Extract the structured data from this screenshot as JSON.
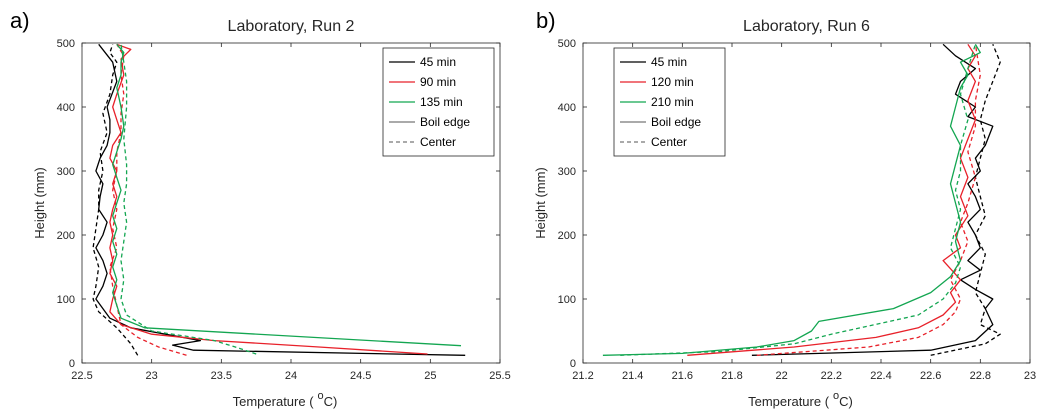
{
  "chart_data": [
    {
      "type": "line",
      "panel_label": "a)",
      "title": "Laboratory, Run 2",
      "xlabel": "Temperature (",
      "xlabel_sup": "o",
      "xlabel_unit": "C)",
      "ylabel": "Height (mm)",
      "xlim": [
        22.5,
        25.5
      ],
      "ylim": [
        0,
        500
      ],
      "xticks": [
        22.5,
        23,
        23.5,
        24,
        24.5,
        25,
        25.5
      ],
      "xtick_labels": [
        "22.5",
        "23",
        "23.5",
        "24",
        "24.5",
        "25",
        "25.5"
      ],
      "yticks": [
        0,
        100,
        200,
        300,
        400,
        500
      ],
      "ytick_labels": [
        "0",
        "100",
        "200",
        "300",
        "400",
        "500"
      ],
      "legend": {
        "placement": "top-right",
        "entries": [
          {
            "label": "45 min",
            "color": "#000000",
            "dash": "solid"
          },
          {
            "label": "90 min",
            "color": "#e8212a",
            "dash": "solid"
          },
          {
            "label": "135 min",
            "color": "#13a651",
            "dash": "solid"
          },
          {
            "label": "Boil edge",
            "color": "#777777",
            "dash": "solid"
          },
          {
            "label": "Center",
            "color": "#777777",
            "dash": "dashed"
          }
        ]
      },
      "series": [
        {
          "time": "45 min",
          "location": "Boil edge",
          "color": "#000000",
          "dash": "solid",
          "x": [
            25.25,
            23.3,
            23.15,
            23.35,
            22.85,
            22.7,
            22.65,
            22.6,
            22.65,
            22.68,
            22.65,
            22.6,
            22.65,
            22.68,
            22.62,
            22.63,
            22.65,
            22.6,
            22.63,
            22.68,
            22.7,
            22.7,
            22.68,
            22.75,
            22.72,
            22.62
          ],
          "y": [
            12,
            20,
            28,
            35,
            55,
            70,
            85,
            100,
            120,
            140,
            160,
            180,
            200,
            220,
            240,
            260,
            280,
            300,
            320,
            340,
            360,
            380,
            400,
            440,
            470,
            498
          ]
        },
        {
          "time": "45 min",
          "location": "Center",
          "color": "#000000",
          "dash": "dashed",
          "x": [
            22.9,
            22.85,
            22.75,
            22.62,
            22.58,
            22.6,
            22.62,
            22.58,
            22.6,
            22.62,
            22.62,
            22.65,
            22.63,
            22.68,
            22.65,
            22.7,
            22.72,
            22.75,
            22.7,
            22.72
          ],
          "y": [
            12,
            30,
            55,
            80,
            100,
            120,
            150,
            180,
            210,
            240,
            270,
            300,
            330,
            360,
            390,
            420,
            450,
            470,
            485,
            498
          ]
        },
        {
          "time": "90 min",
          "location": "Boil edge",
          "color": "#e8212a",
          "dash": "solid",
          "x": [
            24.98,
            24.2,
            23.45,
            23.0,
            22.78,
            22.7,
            22.72,
            22.75,
            22.7,
            22.72,
            22.7,
            22.72,
            22.7,
            22.72,
            22.75,
            22.72,
            22.75,
            22.7,
            22.72,
            22.78,
            22.75,
            22.72,
            22.75,
            22.8,
            22.78,
            22.85,
            22.75
          ],
          "y": [
            14,
            25,
            35,
            45,
            60,
            80,
            100,
            120,
            140,
            160,
            180,
            200,
            220,
            240,
            260,
            280,
            300,
            320,
            340,
            360,
            380,
            400,
            420,
            450,
            475,
            490,
            498
          ]
        },
        {
          "time": "90 min",
          "location": "Center",
          "color": "#e8212a",
          "dash": "dashed",
          "x": [
            23.25,
            23.05,
            22.9,
            22.78,
            22.75,
            22.72,
            22.7,
            22.75,
            22.72,
            22.75,
            22.72,
            22.75,
            22.75,
            22.78,
            22.78,
            22.8,
            22.78,
            22.8,
            22.75
          ],
          "y": [
            12,
            25,
            40,
            60,
            90,
            120,
            150,
            180,
            210,
            240,
            270,
            300,
            330,
            360,
            390,
            420,
            450,
            480,
            498
          ]
        },
        {
          "time": "135 min",
          "location": "Boil edge",
          "color": "#13a651",
          "dash": "solid",
          "x": [
            25.22,
            22.95,
            22.78,
            22.75,
            22.72,
            22.75,
            22.72,
            22.75,
            22.72,
            22.75,
            22.72,
            22.75,
            22.78,
            22.75,
            22.72,
            22.75,
            22.78,
            22.8,
            22.78,
            22.75,
            22.78,
            22.78,
            22.8,
            22.75
          ],
          "y": [
            27,
            55,
            70,
            90,
            110,
            130,
            150,
            170,
            190,
            210,
            230,
            250,
            270,
            290,
            310,
            330,
            350,
            370,
            400,
            430,
            450,
            470,
            485,
            498
          ]
        },
        {
          "time": "135 min",
          "location": "Center",
          "color": "#13a651",
          "dash": "dashed",
          "x": [
            23.75,
            23.6,
            23.45,
            23.0,
            22.82,
            22.78,
            22.8,
            22.78,
            22.8,
            22.82,
            22.8,
            22.82,
            22.82,
            22.8,
            22.82,
            22.82,
            22.8,
            22.78
          ],
          "y": [
            14,
            25,
            35,
            50,
            75,
            100,
            130,
            160,
            190,
            220,
            250,
            280,
            310,
            350,
            400,
            440,
            470,
            498
          ]
        }
      ]
    },
    {
      "type": "line",
      "panel_label": "b)",
      "title": "Laboratory, Run 6",
      "xlabel": "Temperature (",
      "xlabel_sup": "o",
      "xlabel_unit": "C)",
      "ylabel": "Height (mm)",
      "xlim": [
        21.2,
        23
      ],
      "ylim": [
        0,
        500
      ],
      "xticks": [
        21.2,
        21.4,
        21.6,
        21.8,
        22,
        22.2,
        22.4,
        22.6,
        22.8,
        23
      ],
      "xtick_labels": [
        "21.2",
        "21.4",
        "21.6",
        "21.8",
        "22",
        "22.2",
        "22.4",
        "22.6",
        "22.8",
        "23"
      ],
      "yticks": [
        0,
        100,
        200,
        300,
        400,
        500
      ],
      "ytick_labels": [
        "0",
        "100",
        "200",
        "300",
        "400",
        "500"
      ],
      "legend": {
        "placement": "top-left",
        "entries": [
          {
            "label": "45 min",
            "color": "#000000",
            "dash": "solid"
          },
          {
            "label": "120 min",
            "color": "#e8212a",
            "dash": "solid"
          },
          {
            "label": "210 min",
            "color": "#13a651",
            "dash": "solid"
          },
          {
            "label": "Boil edge",
            "color": "#777777",
            "dash": "solid"
          },
          {
            "label": "Center",
            "color": "#777777",
            "dash": "dashed"
          }
        ]
      },
      "series": [
        {
          "time": "45 min",
          "location": "Boil edge",
          "color": "#000000",
          "dash": "solid",
          "x": [
            21.88,
            22.6,
            22.78,
            22.85,
            22.82,
            22.85,
            22.78,
            22.72,
            22.8,
            22.75,
            22.8,
            22.78,
            22.75,
            22.8,
            22.78,
            22.75,
            22.8,
            22.78,
            22.82,
            22.85,
            22.75,
            22.78,
            22.7,
            22.72,
            22.78,
            22.7,
            22.65
          ],
          "y": [
            12,
            20,
            35,
            60,
            85,
            100,
            115,
            130,
            145,
            160,
            180,
            200,
            220,
            240,
            260,
            280,
            300,
            320,
            340,
            370,
            385,
            400,
            420,
            440,
            460,
            480,
            498
          ]
        },
        {
          "time": "45 min",
          "location": "Center",
          "color": "#000000",
          "dash": "dashed",
          "x": [
            22.6,
            22.82,
            22.88,
            22.8,
            22.82,
            22.78,
            22.8,
            22.82,
            22.78,
            22.82,
            22.8,
            22.78,
            22.8,
            22.82,
            22.8,
            22.82,
            22.85,
            22.88,
            22.85
          ],
          "y": [
            12,
            30,
            45,
            60,
            85,
            110,
            140,
            170,
            200,
            230,
            260,
            290,
            320,
            350,
            380,
            410,
            440,
            470,
            498
          ]
        },
        {
          "time": "120 min",
          "location": "Boil edge",
          "color": "#e8212a",
          "dash": "solid",
          "x": [
            21.62,
            22.05,
            22.38,
            22.55,
            22.65,
            22.7,
            22.68,
            22.72,
            22.65,
            22.72,
            22.7,
            22.75,
            22.72,
            22.75,
            22.72,
            22.75,
            22.78,
            22.75,
            22.78,
            22.75,
            22.78,
            22.75
          ],
          "y": [
            12,
            25,
            40,
            55,
            75,
            95,
            110,
            130,
            160,
            180,
            200,
            230,
            260,
            290,
            320,
            350,
            380,
            410,
            440,
            460,
            480,
            498
          ]
        },
        {
          "time": "120 min",
          "location": "Center",
          "color": "#e8212a",
          "dash": "dashed",
          "x": [
            21.9,
            22.35,
            22.55,
            22.65,
            22.7,
            22.72,
            22.68,
            22.72,
            22.75,
            22.72,
            22.75,
            22.78,
            22.75,
            22.78,
            22.78,
            22.8,
            22.78
          ],
          "y": [
            12,
            25,
            40,
            60,
            80,
            100,
            130,
            160,
            190,
            220,
            250,
            290,
            330,
            370,
            410,
            450,
            498
          ]
        },
        {
          "time": "210 min",
          "location": "Boil edge",
          "color": "#13a651",
          "dash": "solid",
          "x": [
            21.28,
            21.6,
            21.9,
            22.05,
            22.12,
            22.15,
            22.45,
            22.6,
            22.68,
            22.72,
            22.7,
            22.72,
            22.7,
            22.68,
            22.7,
            22.72,
            22.68,
            22.7,
            22.72,
            22.75,
            22.72,
            22.8,
            22.78
          ],
          "y": [
            12,
            15,
            25,
            35,
            50,
            65,
            85,
            110,
            135,
            160,
            190,
            220,
            250,
            280,
            310,
            340,
            370,
            400,
            430,
            450,
            470,
            485,
            498
          ]
        },
        {
          "time": "210 min",
          "location": "Center",
          "color": "#13a651",
          "dash": "dashed",
          "x": [
            21.35,
            21.75,
            22.05,
            22.2,
            22.55,
            22.65,
            22.7,
            22.72,
            22.68,
            22.7,
            22.72,
            22.7,
            22.72,
            22.72,
            22.75,
            22.72,
            22.75,
            22.78
          ],
          "y": [
            12,
            18,
            30,
            45,
            75,
            100,
            125,
            150,
            180,
            210,
            240,
            270,
            300,
            340,
            380,
            420,
            460,
            498
          ]
        }
      ]
    }
  ]
}
